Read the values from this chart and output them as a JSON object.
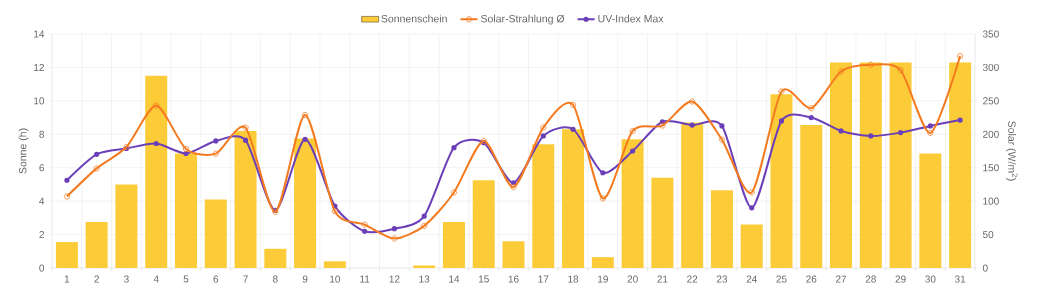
{
  "chart_data": {
    "type": "bar",
    "categories": [
      "1",
      "2",
      "3",
      "4",
      "5",
      "6",
      "7",
      "8",
      "9",
      "10",
      "11",
      "12",
      "13",
      "14",
      "15",
      "16",
      "17",
      "18",
      "19",
      "20",
      "21",
      "22",
      "23",
      "24",
      "25",
      "26",
      "27",
      "28",
      "29",
      "30",
      "31"
    ],
    "series": [
      {
        "name": "Sonnenschein",
        "color": "#fccb38",
        "values": [
          1.55,
          2.75,
          5.0,
          11.5,
          6.85,
          4.1,
          8.2,
          1.15,
          7.75,
          0.4,
          0,
          0,
          0.15,
          2.75,
          5.25,
          1.6,
          7.4,
          8.3,
          0.65,
          7.7,
          5.4,
          8.7,
          4.65,
          2.6,
          10.4,
          8.55,
          12.3,
          12.3,
          12.3,
          6.85,
          12.3
        ]
      },
      {
        "name": "Solar-Strahlung Ø",
        "type": "line",
        "axis": "y2",
        "color": "#f47a20",
        "values": [
          107,
          149,
          181,
          243,
          178,
          171,
          210,
          84,
          229,
          85,
          65,
          44,
          63,
          113,
          190,
          121,
          210,
          244,
          104,
          205,
          213,
          249,
          192,
          113,
          264,
          239,
          294,
          304,
          296,
          202,
          317
        ]
      },
      {
        "name": "UV-Index Max",
        "type": "line",
        "color": "#6b3fb8",
        "values": [
          5.25,
          6.8,
          7.15,
          7.45,
          6.85,
          7.6,
          7.65,
          3.45,
          7.7,
          3.7,
          2.2,
          2.35,
          3.1,
          7.2,
          7.5,
          5.1,
          7.9,
          8.3,
          5.7,
          7.0,
          8.75,
          8.55,
          8.5,
          3.6,
          8.8,
          9.0,
          8.2,
          7.9,
          8.1,
          8.5,
          8.85
        ]
      }
    ],
    "ylabel": "Sonne (h)",
    "y2label": "Solar (W/m$^{2}$)",
    "ylim": [
      0,
      14
    ],
    "yticks": [
      0,
      2,
      4,
      6,
      8,
      10,
      12,
      14
    ],
    "y2lim": [
      0,
      350
    ],
    "y2ticks": [
      0,
      50,
      100,
      150,
      200,
      250,
      300,
      350
    ],
    "grid": true,
    "legend": "top",
    "marker": "circle"
  }
}
